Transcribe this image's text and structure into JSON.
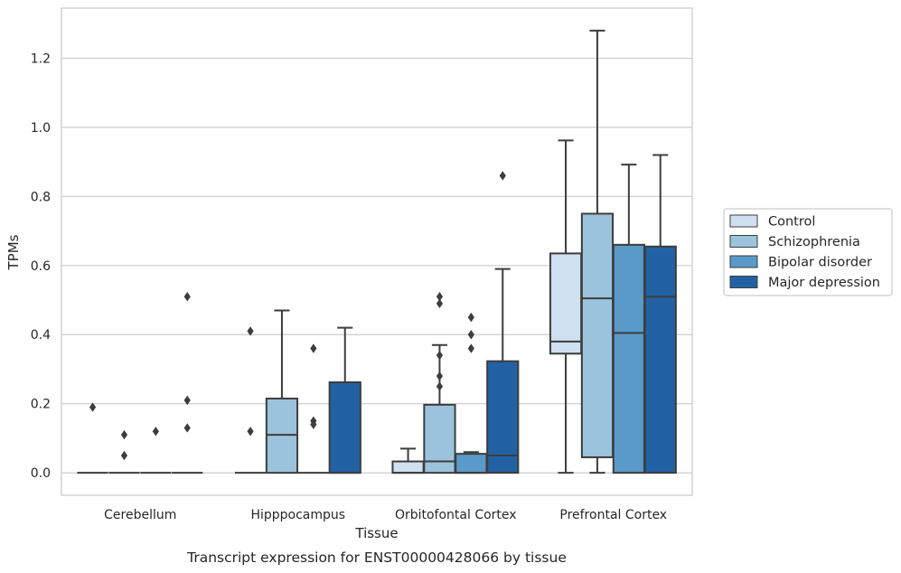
{
  "chart_data": {
    "type": "box",
    "xlabel": "Tissue",
    "ylabel": "TPMs",
    "caption": "Transcript expression for ENST00000428066 by tissue",
    "ylim": [
      -0.065,
      1.345
    ],
    "yticks": [
      0.0,
      0.2,
      0.4,
      0.6,
      0.8,
      1.0,
      1.2
    ],
    "ytick_labels": [
      "0.0",
      "0.2",
      "0.4",
      "0.6",
      "0.8",
      "1.0",
      "1.2"
    ],
    "grid": "y",
    "legend_position": "right",
    "categories": [
      "Cerebellum",
      "Hipppocampus",
      "Orbitofontal Cortex",
      "Prefrontal Cortex"
    ],
    "series": [
      {
        "name": "Control",
        "color": "#cfe0f0",
        "boxes": [
          {
            "q1": 0.0,
            "median": 0.0,
            "q3": 0.0,
            "whisker_low": 0.0,
            "whisker_high": 0.0,
            "outliers": [
              0.19
            ]
          },
          {
            "q1": 0.0,
            "median": 0.0,
            "q3": 0.0,
            "whisker_low": 0.0,
            "whisker_high": 0.0,
            "outliers": [
              0.41,
              0.12
            ]
          },
          {
            "q1": 0.0,
            "median": 0.0,
            "q3": 0.033,
            "whisker_low": 0.0,
            "whisker_high": 0.07,
            "outliers": []
          },
          {
            "q1": 0.345,
            "median": 0.38,
            "q3": 0.635,
            "whisker_low": 0.0,
            "whisker_high": 0.962,
            "outliers": []
          }
        ]
      },
      {
        "name": "Schizophrenia",
        "color": "#9bc3dc",
        "boxes": [
          {
            "q1": 0.0,
            "median": 0.0,
            "q3": 0.0,
            "whisker_low": 0.0,
            "whisker_high": 0.0,
            "outliers": [
              0.11,
              0.05
            ]
          },
          {
            "q1": 0.0,
            "median": 0.11,
            "q3": 0.215,
            "whisker_low": 0.0,
            "whisker_high": 0.47,
            "outliers": []
          },
          {
            "q1": 0.0,
            "median": 0.033,
            "q3": 0.197,
            "whisker_low": 0.0,
            "whisker_high": 0.37,
            "outliers": [
              0.34,
              0.28,
              0.25,
              0.51,
              0.49
            ]
          },
          {
            "q1": 0.045,
            "median": 0.505,
            "q3": 0.75,
            "whisker_low": 0.0,
            "whisker_high": 1.28,
            "outliers": []
          }
        ]
      },
      {
        "name": "Bipolar disorder",
        "color": "#5a9ac8",
        "boxes": [
          {
            "q1": 0.0,
            "median": 0.0,
            "q3": 0.0,
            "whisker_low": 0.0,
            "whisker_high": 0.0,
            "outliers": [
              0.12
            ]
          },
          {
            "q1": 0.0,
            "median": 0.0,
            "q3": 0.0,
            "whisker_low": 0.0,
            "whisker_high": 0.0,
            "outliers": [
              0.36,
              0.15,
              0.14
            ]
          },
          {
            "q1": 0.0,
            "median": 0.0,
            "q3": 0.055,
            "whisker_low": 0.0,
            "whisker_high": 0.06,
            "outliers": [
              0.45,
              0.4,
              0.36
            ]
          },
          {
            "q1": 0.0,
            "median": 0.405,
            "q3": 0.66,
            "whisker_low": 0.0,
            "whisker_high": 0.892,
            "outliers": []
          }
        ]
      },
      {
        "name": "Major depression",
        "color": "#2262a4",
        "boxes": [
          {
            "q1": 0.0,
            "median": 0.0,
            "q3": 0.0,
            "whisker_low": 0.0,
            "whisker_high": 0.0,
            "outliers": [
              0.51,
              0.21,
              0.13
            ]
          },
          {
            "q1": 0.0,
            "median": 0.0,
            "q3": 0.262,
            "whisker_low": 0.0,
            "whisker_high": 0.42,
            "outliers": []
          },
          {
            "q1": 0.0,
            "median": 0.05,
            "q3": 0.323,
            "whisker_low": 0.0,
            "whisker_high": 0.59,
            "outliers": [
              0.86
            ]
          },
          {
            "q1": 0.0,
            "median": 0.51,
            "q3": 0.655,
            "whisker_low": 0.0,
            "whisker_high": 0.92,
            "outliers": []
          }
        ]
      }
    ]
  }
}
